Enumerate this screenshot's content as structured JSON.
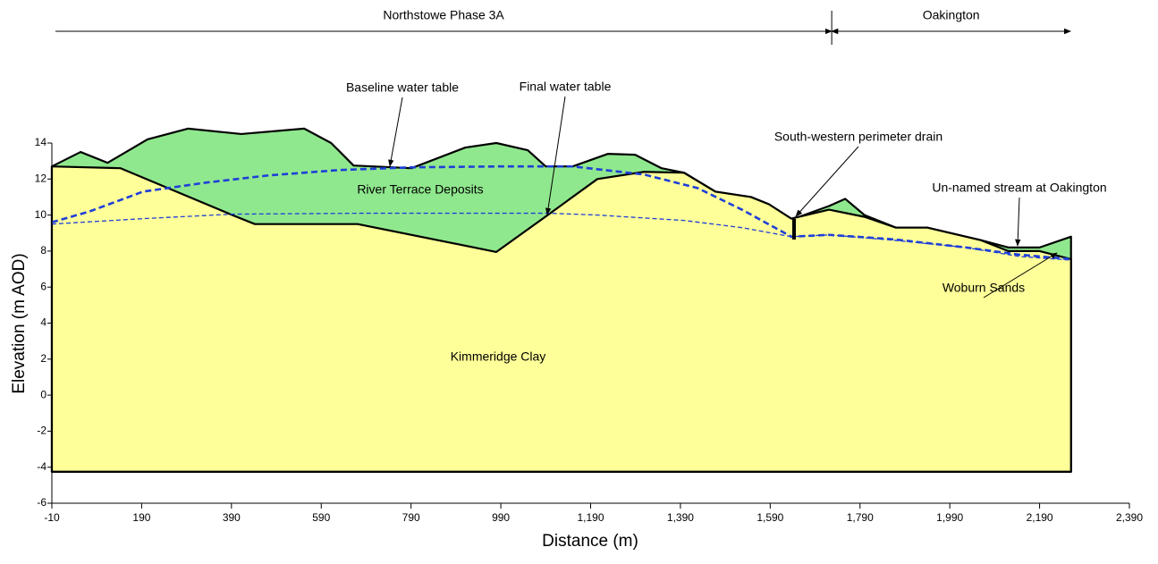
{
  "chart_data": {
    "type": "section",
    "x_label": "Distance (m)",
    "y_label": "Elevation (m AOD)",
    "xlim": [
      -10,
      2390
    ],
    "ylim": [
      -6,
      14
    ],
    "base": -4.25,
    "xticks": [
      -10,
      190,
      390,
      590,
      790,
      990,
      {
        "value": 1190,
        "label": "1,190"
      },
      {
        "value": 1390,
        "label": "1,390"
      },
      {
        "value": 1590,
        "label": "1,590"
      },
      {
        "value": 1790,
        "label": "1,790"
      },
      {
        "value": 1990,
        "label": "1,990"
      },
      {
        "value": 2190,
        "label": "2,190"
      },
      {
        "value": 2390,
        "label": "2,390"
      }
    ],
    "yticks": [
      -6,
      -4,
      -2,
      0,
      2,
      4,
      6,
      8,
      10,
      12,
      14
    ],
    "regions": [
      {
        "label": "Northstowe Phase 3A",
        "from": -2,
        "to": 1727
      },
      {
        "label": "Oakington",
        "from": 1727,
        "to": 2259
      }
    ],
    "series": [
      {
        "name": "River Terrace Deposits",
        "kind": "area",
        "color": "#90e88e",
        "x": [
          -10,
          54,
          114,
          203,
          293,
          412,
          552,
          612,
          662,
          791,
          911,
          980,
          1050,
          1090,
          1150,
          1229,
          1289,
          1348,
          1398,
          1468,
          1547,
          1587,
          1637,
          1643,
          1721,
          1757,
          1800,
          1870,
          1940,
          2060,
          2120,
          2190,
          2260
        ],
        "values": [
          12.7,
          13.5,
          12.9,
          14.2,
          14.8,
          14.5,
          14.8,
          14.0,
          12.75,
          12.6,
          13.75,
          14.0,
          13.6,
          12.7,
          12.7,
          13.4,
          13.35,
          12.6,
          12.35,
          11.3,
          11.0,
          10.6,
          9.8,
          9.8,
          10.5,
          10.9,
          10.0,
          9.3,
          9.3,
          8.6,
          8.2,
          8.2,
          8.8
        ]
      },
      {
        "name": "Kimmeridge Clay",
        "kind": "area",
        "color": "#ffff99",
        "x": [
          -10,
          143,
          392,
          442,
          671,
          980,
          1100,
          1205,
          1309,
          1398,
          1468,
          1547,
          1587,
          1637,
          1721,
          1800,
          1870,
          1940,
          2060,
          2120,
          2190,
          2260
        ],
        "values": [
          12.7,
          12.6,
          10.0,
          9.5,
          9.5,
          7.95,
          10.1,
          12.0,
          12.4,
          12.35,
          11.3,
          11.0,
          10.6,
          9.8,
          10.3,
          9.9,
          9.3,
          9.3,
          8.6,
          8.0,
          8.0,
          7.55
        ]
      },
      {
        "name": "Baseline water table",
        "kind": "line",
        "color": "#1f3fd8",
        "line_width": 2.6,
        "x": [
          -10,
          74,
          193,
          333,
          472,
          631,
          791,
          990,
          1150,
          1309,
          1428,
          1527,
          1637,
          1721,
          1866,
          2026,
          2145,
          2260
        ],
        "values": [
          9.6,
          10.2,
          11.3,
          11.8,
          12.2,
          12.5,
          12.65,
          12.7,
          12.7,
          12.25,
          11.5,
          10.3,
          8.8,
          8.9,
          8.65,
          8.2,
          7.8,
          7.55
        ]
      },
      {
        "name": "Final water table",
        "kind": "line",
        "color": "#1f3fd8",
        "line_width": 1.3,
        "x": [
          -10,
          193,
          392,
          671,
          990,
          1100,
          1205,
          1398,
          1527,
          1637,
          1721,
          1866,
          2026,
          2145,
          2260
        ],
        "values": [
          9.5,
          9.8,
          10.05,
          10.1,
          10.1,
          10.1,
          10.0,
          9.7,
          9.3,
          8.8,
          8.9,
          8.6,
          8.2,
          7.7,
          7.5
        ]
      }
    ],
    "annotations": [
      "South-western perimeter drain",
      "Un-named stream at Oakington",
      "Woburn Sands"
    ]
  }
}
